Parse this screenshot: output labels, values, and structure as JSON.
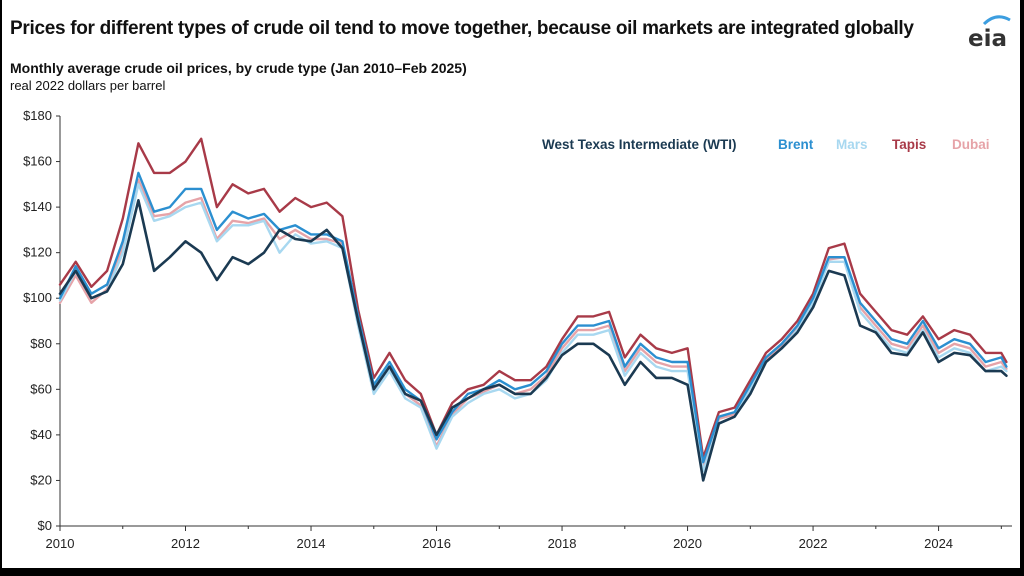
{
  "title": "Prices for different types of crude oil tend to move together, because oil markets are integrated globally",
  "subtitle": "Monthly average crude oil prices, by crude type (Jan 2010–Feb 2025)",
  "units": "real 2022 dollars per barrel",
  "logo_text": "eia",
  "colors": {
    "wti": "#1b3a52",
    "brent": "#2b8fd0",
    "mars": "#a8d8f0",
    "tapis": "#a83a48",
    "dubai": "#e6a3a8",
    "logo_accent": "#3c9ee0"
  },
  "chart_data": {
    "type": "line",
    "title": "Monthly average crude oil prices, by crude type (Jan 2010–Feb 2025)",
    "ylabel": "real 2022 dollars per barrel",
    "xlabel": "",
    "ylim": [
      0,
      180
    ],
    "xlim": [
      2010,
      2025.17
    ],
    "yticks": [
      "$0",
      "$20",
      "$40",
      "$60",
      "$80",
      "$100",
      "$120",
      "$140",
      "$160",
      "$180"
    ],
    "xticks": [
      "2010",
      "2012",
      "2014",
      "2016",
      "2018",
      "2020",
      "2022",
      "2024"
    ],
    "grid": false,
    "legend_position": "top-right",
    "x": [
      2010.0,
      2010.25,
      2010.5,
      2010.75,
      2011.0,
      2011.25,
      2011.5,
      2011.75,
      2012.0,
      2012.25,
      2012.5,
      2012.75,
      2013.0,
      2013.25,
      2013.5,
      2013.75,
      2014.0,
      2014.25,
      2014.5,
      2014.75,
      2015.0,
      2015.25,
      2015.5,
      2015.75,
      2016.0,
      2016.25,
      2016.5,
      2016.75,
      2017.0,
      2017.25,
      2017.5,
      2017.75,
      2018.0,
      2018.25,
      2018.5,
      2018.75,
      2019.0,
      2019.25,
      2019.5,
      2019.75,
      2020.0,
      2020.25,
      2020.5,
      2020.75,
      2021.0,
      2021.25,
      2021.5,
      2021.75,
      2022.0,
      2022.25,
      2022.5,
      2022.75,
      2023.0,
      2023.25,
      2023.5,
      2023.75,
      2024.0,
      2024.25,
      2024.5,
      2024.75,
      2025.0,
      2025.08
    ],
    "series": [
      {
        "name": "West Texas Intermediate (WTI)",
        "key": "wti",
        "values": [
          102,
          112,
          100,
          103,
          115,
          143,
          112,
          118,
          125,
          120,
          108,
          118,
          115,
          120,
          130,
          126,
          125,
          130,
          122,
          90,
          60,
          70,
          58,
          55,
          40,
          52,
          56,
          60,
          62,
          58,
          58,
          65,
          75,
          80,
          80,
          75,
          62,
          72,
          65,
          65,
          62,
          20,
          45,
          48,
          58,
          72,
          78,
          85,
          96,
          112,
          110,
          88,
          85,
          76,
          75,
          85,
          72,
          76,
          75,
          68,
          68,
          66
        ]
      },
      {
        "name": "Brent",
        "key": "brent",
        "values": [
          100,
          114,
          102,
          106,
          125,
          155,
          138,
          140,
          148,
          148,
          130,
          138,
          135,
          137,
          130,
          132,
          128,
          128,
          125,
          92,
          62,
          72,
          60,
          55,
          38,
          50,
          58,
          60,
          64,
          60,
          62,
          68,
          80,
          88,
          88,
          90,
          70,
          80,
          74,
          72,
          72,
          28,
          48,
          50,
          62,
          74,
          80,
          88,
          100,
          118,
          118,
          98,
          90,
          82,
          80,
          90,
          78,
          82,
          80,
          72,
          74,
          70
        ]
      },
      {
        "name": "Mars",
        "key": "mars",
        "values": [
          99,
          112,
          100,
          103,
          120,
          150,
          134,
          136,
          140,
          142,
          125,
          132,
          132,
          134,
          120,
          128,
          124,
          125,
          122,
          88,
          58,
          68,
          56,
          52,
          34,
          48,
          54,
          58,
          60,
          56,
          58,
          64,
          76,
          84,
          84,
          86,
          66,
          76,
          70,
          68,
          68,
          24,
          45,
          48,
          60,
          72,
          78,
          86,
          98,
          116,
          116,
          94,
          86,
          78,
          76,
          86,
          74,
          78,
          76,
          68,
          70,
          68
        ]
      },
      {
        "name": "Tapis",
        "key": "tapis",
        "values": [
          106,
          116,
          105,
          112,
          135,
          168,
          155,
          155,
          160,
          170,
          140,
          150,
          146,
          148,
          138,
          144,
          140,
          142,
          136,
          95,
          65,
          76,
          64,
          58,
          40,
          54,
          60,
          62,
          68,
          64,
          64,
          70,
          82,
          92,
          92,
          94,
          74,
          84,
          78,
          76,
          78,
          30,
          50,
          52,
          64,
          76,
          82,
          90,
          102,
          122,
          124,
          102,
          94,
          86,
          84,
          92,
          82,
          86,
          84,
          76,
          76,
          72
        ]
      },
      {
        "name": "Dubai",
        "key": "dubai",
        "values": [
          98,
          110,
          98,
          104,
          122,
          152,
          136,
          137,
          142,
          144,
          126,
          134,
          133,
          135,
          126,
          130,
          126,
          126,
          124,
          90,
          60,
          70,
          58,
          53,
          35,
          49,
          56,
          59,
          62,
          58,
          60,
          66,
          78,
          86,
          86,
          88,
          68,
          78,
          72,
          70,
          70,
          26,
          47,
          49,
          61,
          73,
          79,
          87,
          99,
          117,
          118,
          96,
          88,
          80,
          78,
          88,
          76,
          80,
          78,
          70,
          72,
          69
        ]
      }
    ]
  }
}
